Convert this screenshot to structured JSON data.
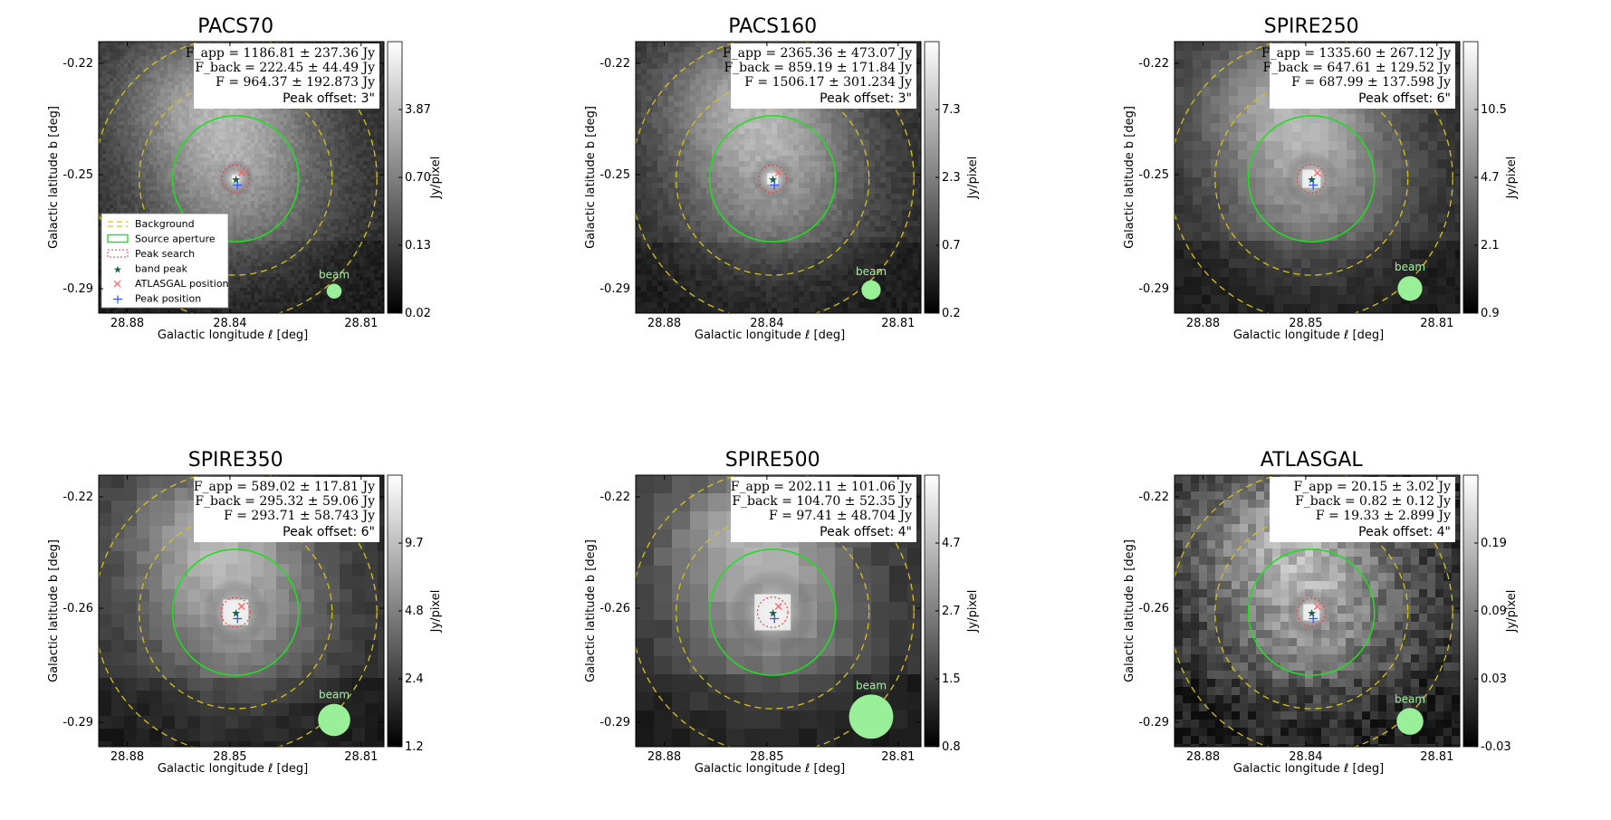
{
  "figure": {
    "legend": {
      "items": [
        {
          "label": "Background",
          "style": "dashed-yellow"
        },
        {
          "label": "Source aperture",
          "style": "green-box"
        },
        {
          "label": "Peak search",
          "style": "dotted-red"
        },
        {
          "label": "band peak",
          "style": "star"
        },
        {
          "label": "ATLASGAL position",
          "style": "x"
        },
        {
          "label": "Peak position",
          "style": "plus"
        }
      ]
    },
    "panels": [
      {
        "title": "PACS70",
        "x_ticks": [
          "28.88",
          "28.84",
          "28.81"
        ],
        "y_ticks": [
          "-0.22",
          "-0.25",
          "-0.29"
        ],
        "xlabel": "Galactic longitude ℓ [deg]",
        "ylabel": "Galactic latitude b [deg]",
        "cbar_label": "Jy/pixel",
        "cbar_ticks": [
          "3.87",
          "0.70",
          "0.13",
          "0.02"
        ],
        "info": [
          "F_app = 1186.81 ± 237.36 Jy",
          "F_back = 222.45 ± 44.49 Jy",
          "F = 964.37 ± 192.873 Jy"
        ],
        "peak_offset": "Peak offset: 3\"",
        "beam_label": "beam",
        "beam_size": 0.35,
        "pixel_scale": 1,
        "core_size": 0.6,
        "has_legend": true
      },
      {
        "title": "PACS160",
        "x_ticks": [
          "28.88",
          "28.84",
          "28.81"
        ],
        "y_ticks": [
          "-0.22",
          "-0.25",
          "-0.29"
        ],
        "xlabel": "Galactic longitude ℓ [deg]",
        "ylabel": "Galactic latitude b [deg]",
        "cbar_label": "Jy/pixel",
        "cbar_ticks": [
          "7.3",
          "2.3",
          "0.7",
          "0.2"
        ],
        "info": [
          "F_app = 2365.36 ± 473.07 Jy",
          "F_back = 859.19 ± 171.84 Jy",
          "F = 1506.17 ± 301.234 Jy"
        ],
        "peak_offset": "Peak offset: 3\"",
        "beam_label": "beam",
        "beam_size": 0.55,
        "pixel_scale": 1.5,
        "core_size": 0.7,
        "has_legend": false
      },
      {
        "title": "SPIRE250",
        "x_ticks": [
          "28.88",
          "28.85",
          "28.81"
        ],
        "y_ticks": [
          "-0.22",
          "-0.25",
          "-0.29"
        ],
        "xlabel": "Galactic longitude ℓ [deg]",
        "ylabel": "Galactic latitude b [deg]",
        "cbar_label": "Jy/pixel",
        "cbar_ticks": [
          "10.5",
          "4.7",
          "2.1",
          "0.9"
        ],
        "info": [
          "F_app = 1335.60 ± 267.12 Jy",
          "F_back = 647.61 ± 129.52 Jy",
          "F = 687.99 ± 137.598 Jy"
        ],
        "peak_offset": "Peak offset: 6\"",
        "beam_label": "beam",
        "beam_size": 0.8,
        "pixel_scale": 2.5,
        "core_size": 0.9,
        "has_legend": false
      },
      {
        "title": "SPIRE350",
        "x_ticks": [
          "28.88",
          "28.85",
          "28.81"
        ],
        "y_ticks": [
          "-0.22",
          "-0.26",
          "-0.29"
        ],
        "xlabel": "Galactic longitude ℓ [deg]",
        "ylabel": "Galactic latitude b [deg]",
        "cbar_label": "Jy/pixel",
        "cbar_ticks": [
          "9.7",
          "4.8",
          "2.4",
          "1.2"
        ],
        "info": [
          "F_app = 589.02 ± 117.81 Jy",
          "F_back = 295.32 ± 59.06 Jy",
          "F = 293.71 ± 58.743 Jy"
        ],
        "peak_offset": "Peak offset: 6\"",
        "beam_label": "beam",
        "beam_size": 1.15,
        "pixel_scale": 3.5,
        "core_size": 1.1,
        "has_legend": false
      },
      {
        "title": "SPIRE500",
        "x_ticks": [
          "28.88",
          "28.85",
          "28.81"
        ],
        "y_ticks": [
          "-0.22",
          "-0.26",
          "-0.29"
        ],
        "xlabel": "Galactic longitude ℓ [deg]",
        "ylabel": "Galactic latitude b [deg]",
        "cbar_label": "Jy/pixel",
        "cbar_ticks": [
          "4.7",
          "2.7",
          "1.5",
          "0.8"
        ],
        "info": [
          "F_app = 202.11 ± 101.06 Jy",
          "F_back = 104.70 ± 52.35 Jy",
          "F = 97.41 ± 48.704 Jy"
        ],
        "peak_offset": "Peak offset: 4\"",
        "beam_label": "beam",
        "beam_size": 1.7,
        "pixel_scale": 5,
        "core_size": 1.4,
        "has_legend": false
      },
      {
        "title": "ATLASGAL",
        "x_ticks": [
          "28.88",
          "28.84",
          "28.81"
        ],
        "y_ticks": [
          "-0.22",
          "-0.26",
          "-0.29"
        ],
        "xlabel": "Galactic longitude ℓ [deg]",
        "ylabel": "Galactic latitude b [deg]",
        "cbar_label": "Jy/pixel",
        "cbar_ticks": [
          "0.19",
          "0.09",
          "0.03",
          "-0.03"
        ],
        "info": [
          "F_app = 20.15 ± 3.02 Jy",
          "F_back = 0.82 ± 0.12 Jy",
          "F = 19.33 ± 2.899 Jy"
        ],
        "peak_offset": "Peak offset: 4\"",
        "beam_label": "beam",
        "beam_size": 0.9,
        "pixel_scale": 2.2,
        "core_size": 0.8,
        "has_legend": false
      }
    ]
  }
}
